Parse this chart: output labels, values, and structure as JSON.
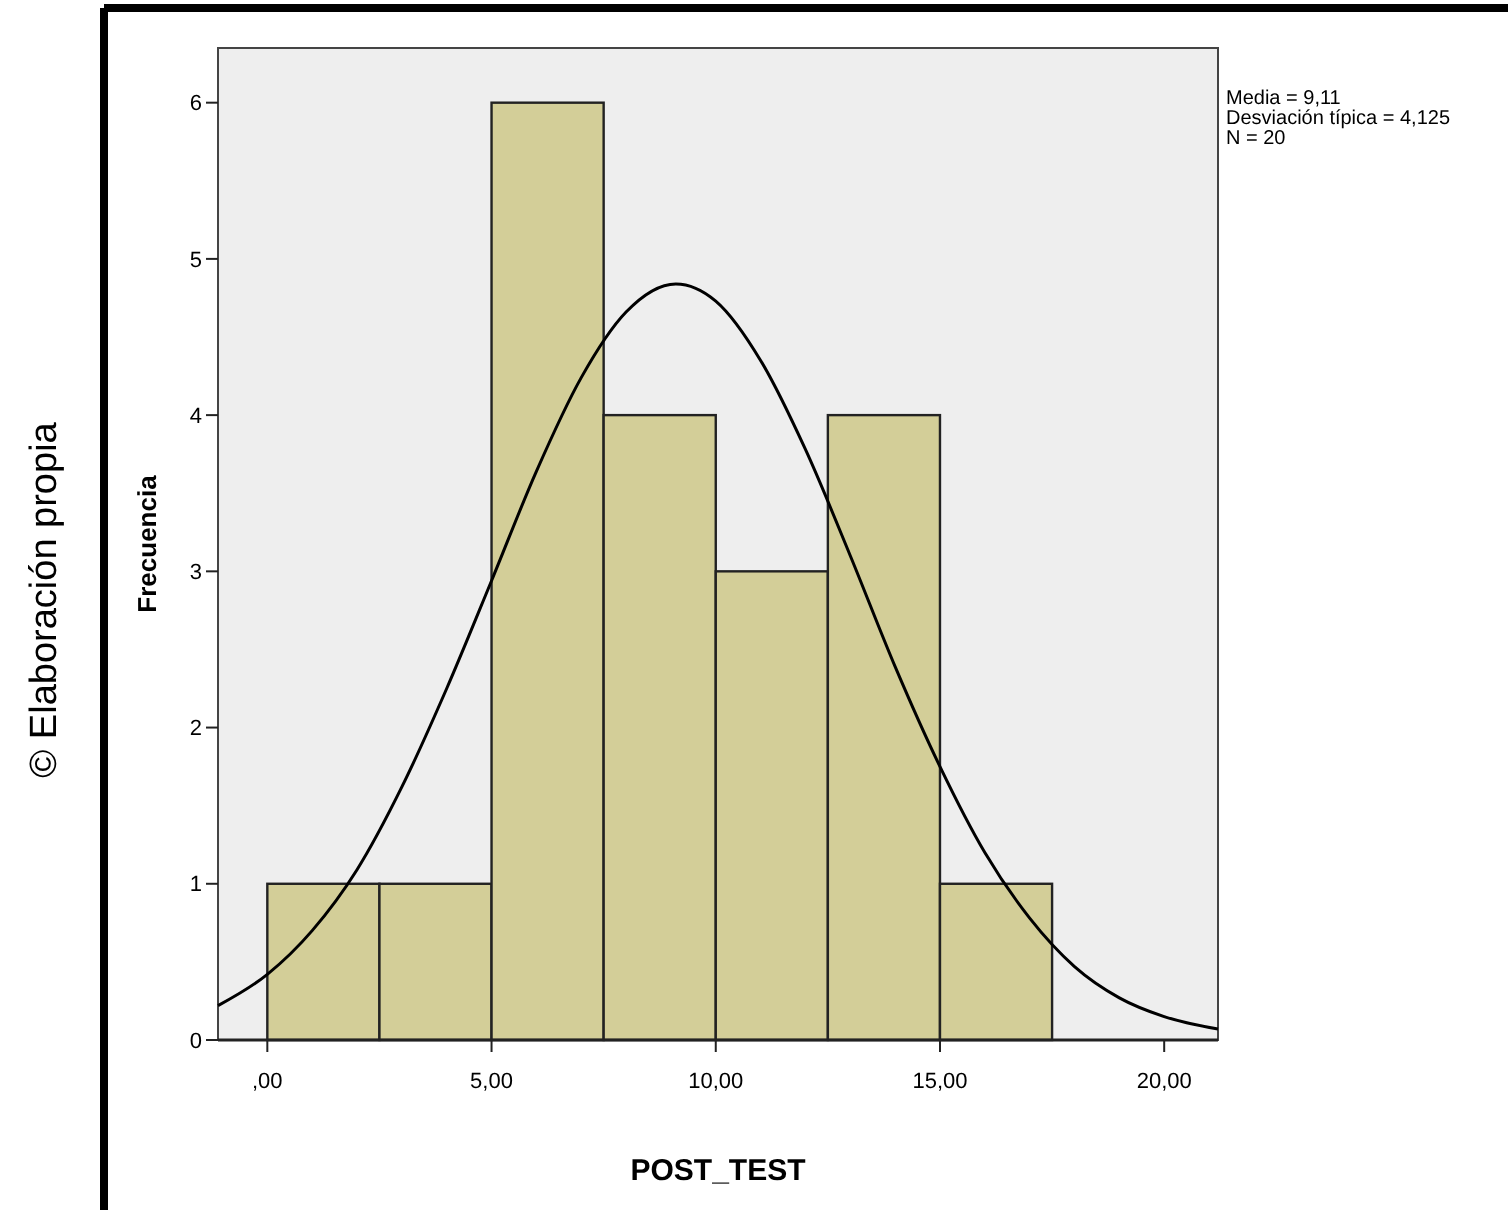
{
  "chart_data": {
    "type": "histogram",
    "xlabel": "POST_TEST",
    "ylabel": "Frecuencia",
    "bins": [
      0,
      2.5,
      5,
      7.5,
      10,
      12.5,
      15,
      17.5
    ],
    "values": [
      1,
      1,
      6,
      4,
      3,
      4,
      1
    ],
    "color": "#d3ce98",
    "series": [
      {
        "type": "line",
        "color": "#000000",
        "x": [
          -1.1,
          0,
          1,
          2,
          3,
          4,
          5,
          6,
          7,
          8,
          9.11,
          10,
          11,
          12,
          13,
          14,
          15,
          16,
          17,
          18,
          19,
          20,
          21.2
        ],
        "values": [
          0.22,
          0.42,
          0.7,
          1.09,
          1.62,
          2.25,
          2.94,
          3.64,
          4.24,
          4.66,
          4.84,
          4.73,
          4.35,
          3.78,
          3.1,
          2.39,
          1.75,
          1.2,
          0.78,
          0.47,
          0.27,
          0.15,
          0.07
        ]
      }
    ],
    "xlim": [
      -1.1,
      21.2
    ],
    "ylim": [
      0,
      6.35
    ],
    "xticks": [
      {
        "value": 0,
        "label": ",00"
      },
      {
        "value": 5,
        "label": "5,00"
      },
      {
        "value": 10,
        "label": "10,00"
      },
      {
        "value": 15,
        "label": "15,00"
      },
      {
        "value": 20,
        "label": "20,00"
      }
    ],
    "yticks": [
      0,
      1,
      2,
      3,
      4,
      5,
      6
    ],
    "grid": false,
    "annotations": [
      "Media = 9,11",
      "Desviación típica = 4,125",
      "N = 20",
      "© Elaboración propia"
    ]
  }
}
